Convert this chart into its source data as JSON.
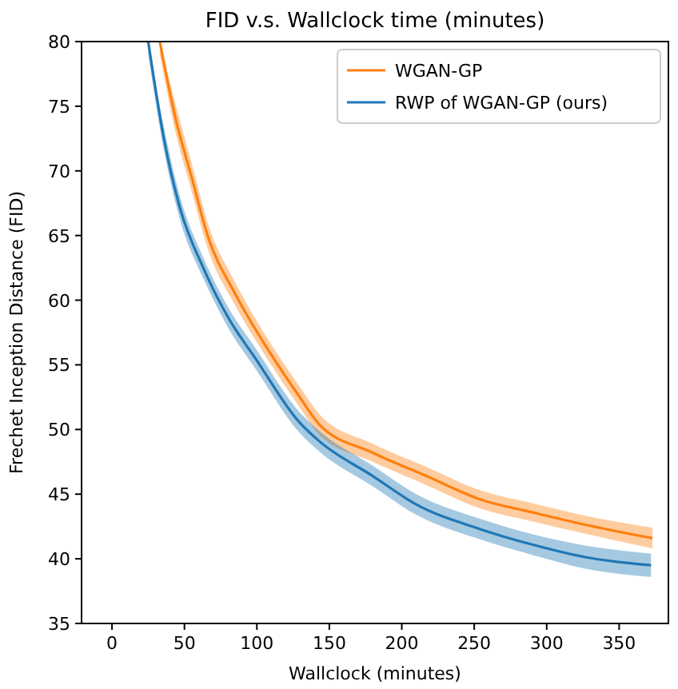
{
  "chart_data": {
    "type": "line",
    "title": "FID v.s. Wallclock time (minutes)",
    "xlabel": "Wallclock (minutes)",
    "ylabel": "Frechet Inception Distance (FID)",
    "xlim": [
      -21,
      384
    ],
    "ylim": [
      35,
      80
    ],
    "xticks": [
      0,
      50,
      100,
      150,
      200,
      250,
      300,
      350
    ],
    "yticks": [
      35,
      40,
      45,
      50,
      55,
      60,
      65,
      70,
      75,
      80
    ],
    "legend": "top right",
    "grid": false,
    "series": [
      {
        "name": "WGAN-GP",
        "color": "#ff7f0e",
        "x": [
          33,
          44,
          55,
          66,
          85,
          107,
          129,
          143,
          180,
          217,
          254,
          290,
          328,
          373
        ],
        "values": [
          80,
          74,
          69.5,
          65,
          60.5,
          56.3,
          52.6,
          50.4,
          48.2,
          46.4,
          44.6,
          43.6,
          42.6,
          41.6
        ],
        "lower": [
          79,
          72.9,
          68.4,
          64,
          59.6,
          55.5,
          51.8,
          49.6,
          47.5,
          45.7,
          43.9,
          42.9,
          41.9,
          40.8
        ],
        "upper": [
          80,
          75.1,
          70.6,
          66,
          61.4,
          57.1,
          53.4,
          51.2,
          48.9,
          47.1,
          45.3,
          44.3,
          43.3,
          42.4
        ]
      },
      {
        "name": "RWP of WGAN-GP (ours)",
        "color": "#1f77b4",
        "x": [
          25,
          36,
          47,
          63,
          81,
          99,
          129,
          143,
          180,
          210,
          254,
          290,
          328,
          372
        ],
        "values": [
          80,
          72.4,
          67.1,
          62.5,
          58.5,
          55.5,
          50.6,
          49.1,
          46.4,
          44.2,
          42.3,
          41.1,
          40.1,
          39.5
        ],
        "lower": [
          79,
          71.5,
          66.2,
          61.7,
          57.7,
          54.7,
          49.8,
          48.3,
          45.6,
          43.4,
          41.5,
          40.3,
          39.2,
          38.6
        ],
        "upper": [
          80,
          73.3,
          68,
          63.3,
          59.3,
          56.3,
          51.4,
          49.9,
          47.2,
          45,
          43.1,
          41.9,
          41,
          40.4
        ]
      }
    ]
  }
}
